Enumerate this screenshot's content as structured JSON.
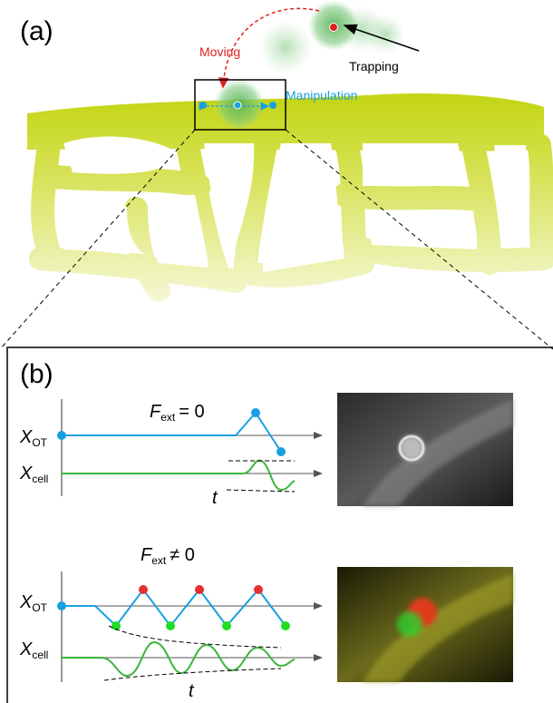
{
  "panel_a": {
    "label": "(a)",
    "annotations": {
      "moving": "Moving",
      "trapping": "Trapping",
      "manipulation": "Manipulation"
    }
  },
  "panel_b": {
    "label": "(b)",
    "plots": [
      {
        "condition": {
          "symbol": "F",
          "subscript": "ext",
          "relation": "= 0"
        },
        "x_ot": {
          "symbol": "X",
          "subscript": "OT"
        },
        "x_cell": {
          "symbol": "X",
          "subscript": "cell"
        },
        "time": "t"
      },
      {
        "condition": {
          "symbol": "F",
          "subscript": "ext",
          "relation": "≠ 0"
        },
        "x_ot": {
          "symbol": "X",
          "subscript": "OT"
        },
        "x_cell": {
          "symbol": "X",
          "subscript": "cell"
        },
        "time": "t"
      }
    ]
  }
}
